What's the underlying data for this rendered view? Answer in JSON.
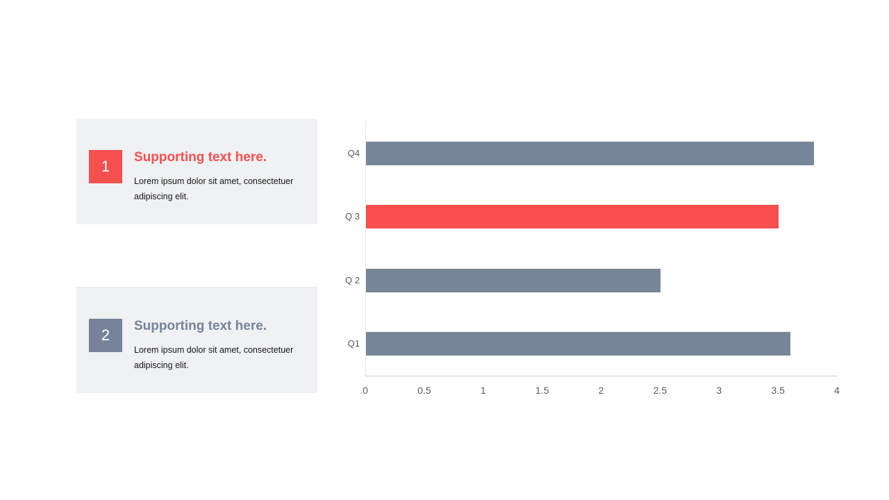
{
  "slide": {
    "background": "#ffffff",
    "card_background": "#F0F1F3"
  },
  "cards": [
    {
      "number": "1",
      "heading": "Supporting text here.",
      "body_lines": [
        "Lorem ipsum dolor sit amet, consectetuer",
        "adipiscing elit."
      ],
      "accent_color": "#F4504E",
      "background": "#F0F1F3"
    },
    {
      "number": "2",
      "heading": "Supporting text here.",
      "body_lines": [
        "Lorem ipsum dolor sit amet, consectetuer",
        "adipiscing elit."
      ],
      "accent_color": "#76839A",
      "background": "#F0F1F3"
    }
  ],
  "chart_data": {
    "type": "bar",
    "orientation": "horizontal",
    "title": "",
    "xlabel": "",
    "ylabel": "",
    "categories_top_to_bottom": [
      "Q4",
      "Q 3",
      "Q 2",
      "Q1"
    ],
    "values_top_to_bottom": [
      3.8,
      3.5,
      2.5,
      3.6
    ],
    "highlight_index": 1,
    "bar_color": "#778599",
    "highlight_color": "#F84E4E",
    "x_ticks": [
      "0",
      "0.5",
      "1",
      "1.5",
      "2",
      "2.5",
      "3",
      "3.5",
      "4"
    ],
    "x_tick_values": [
      0,
      0.5,
      1,
      1.5,
      2,
      2.5,
      3,
      3.5,
      4
    ],
    "xlim": [
      0,
      4
    ],
    "grid": false,
    "legend": false,
    "axis_label_color": "#595959"
  }
}
